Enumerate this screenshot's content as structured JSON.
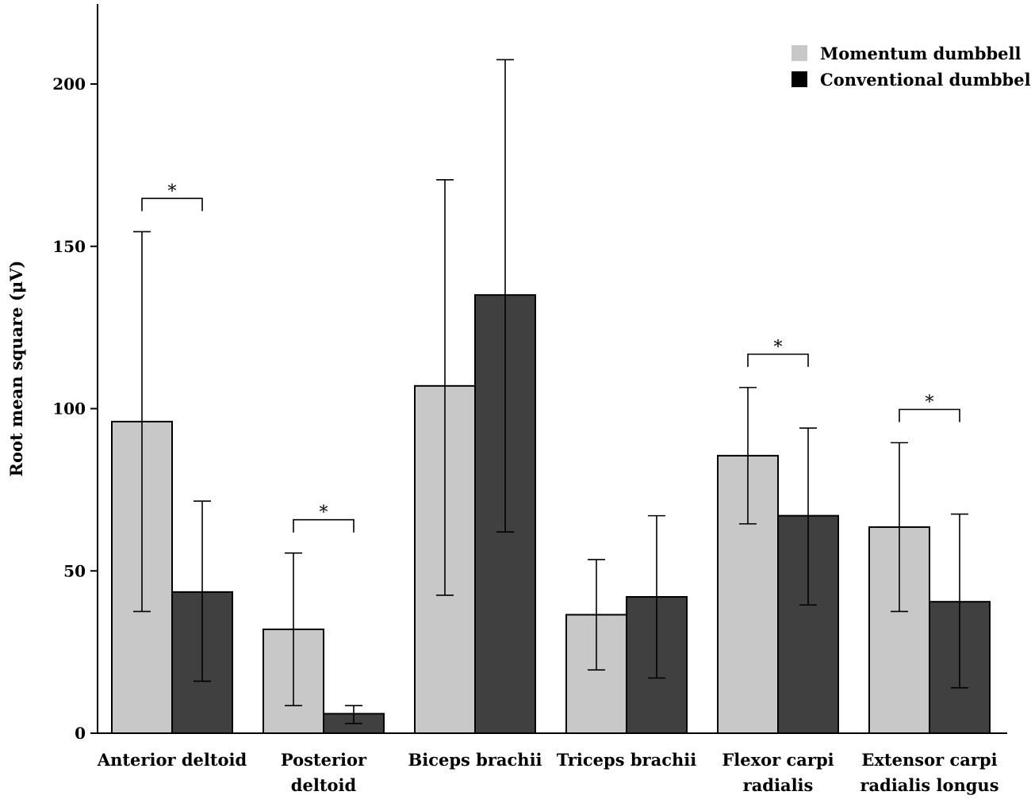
{
  "chart_data": {
    "type": "bar",
    "title": "",
    "xlabel": "",
    "ylabel": "Root mean square (μV)",
    "ylim": [
      0,
      225
    ],
    "yticks": [
      0,
      50,
      100,
      150,
      200
    ],
    "categories": [
      [
        "Anterior deltoid"
      ],
      [
        "Posterior",
        "deltoid"
      ],
      [
        "Biceps brachii"
      ],
      [
        "Triceps brachii"
      ],
      [
        "Flexor carpi",
        "radialis"
      ],
      [
        "Extensor carpi",
        "radialis longus"
      ]
    ],
    "series": [
      {
        "name": "Momentum dumbbell",
        "color": "#c8c8c8",
        "values": [
          96,
          32,
          107,
          36.5,
          85.5,
          63.5
        ],
        "err_low": [
          37.5,
          8.5,
          42.5,
          19.5,
          64.5,
          37.5
        ],
        "err_high": [
          154.5,
          55.5,
          170.5,
          53.5,
          106.5,
          89.5
        ]
      },
      {
        "name": "Conventional dumbbell",
        "color": "#404040",
        "values": [
          43.5,
          6,
          135,
          42,
          67,
          40.5
        ],
        "err_low": [
          16,
          3,
          62,
          17,
          39.5,
          14
        ],
        "err_high": [
          71.5,
          8.5,
          207.5,
          67,
          94,
          67.5
        ]
      }
    ],
    "significance": [
      {
        "category_index": 0,
        "label": "*"
      },
      {
        "category_index": 1,
        "label": "*"
      },
      {
        "category_index": 4,
        "label": "*"
      },
      {
        "category_index": 5,
        "label": "*"
      }
    ],
    "legend_position": "top-right",
    "grid": false
  }
}
